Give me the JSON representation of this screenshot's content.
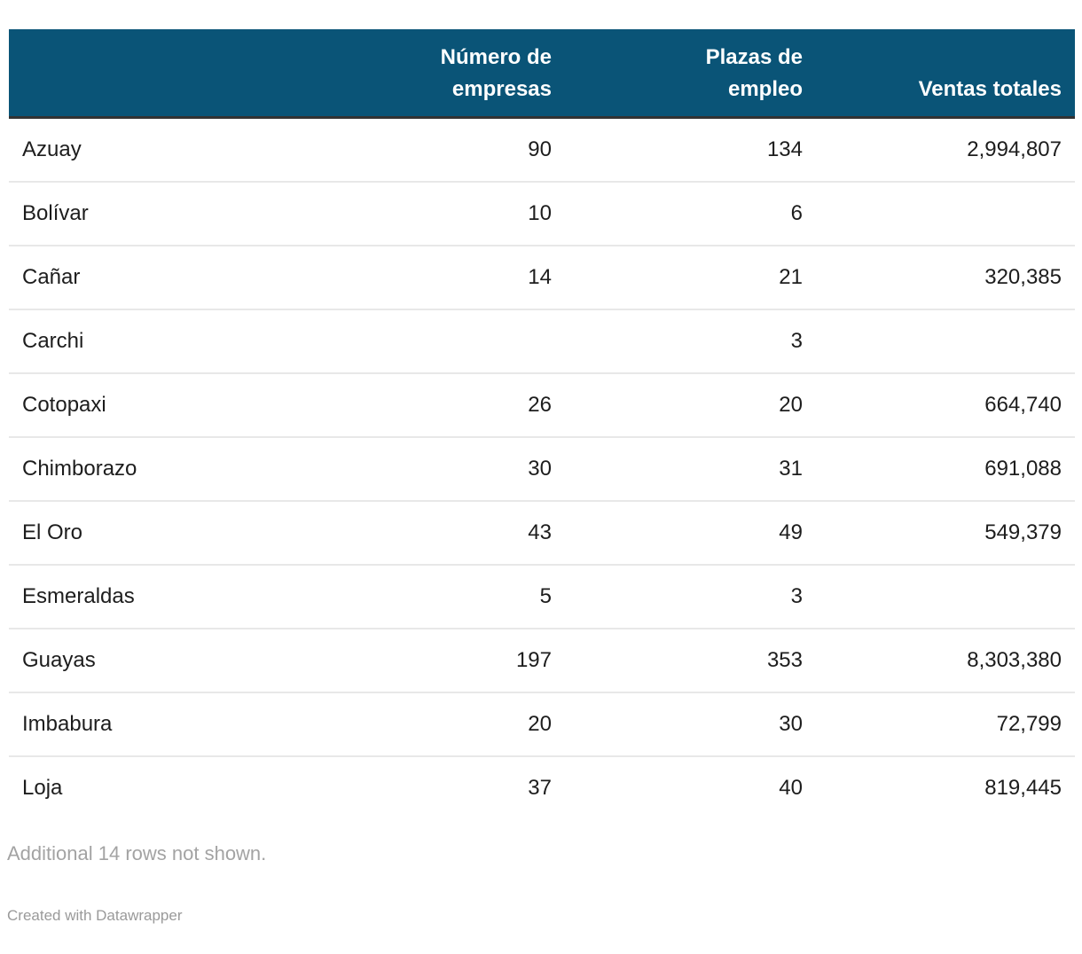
{
  "colors": {
    "page_bg": "#ffffff",
    "header_bg": "#0a5477",
    "header_text": "#ffffff",
    "header_border": "#333333",
    "row_text": "#1d1d1d",
    "row_separator": "#e8e8e8",
    "muted_text": "#a3a3a3",
    "attribution_text": "#9a9a9a"
  },
  "chart_data": {
    "type": "table",
    "columns": [
      {
        "label": "",
        "lines": [
          ""
        ],
        "align": "left"
      },
      {
        "label": "Número de empresas",
        "lines": [
          "Número de",
          "empresas"
        ],
        "align": "right"
      },
      {
        "label": "Plazas de empleo",
        "lines": [
          "Plazas de",
          "empleo"
        ],
        "align": "right"
      },
      {
        "label": "Ventas totales",
        "lines": [
          "Ventas totales"
        ],
        "align": "right"
      }
    ],
    "field_order": [
      "province",
      "num_empresas",
      "plazas_empleo",
      "ventas_totales"
    ],
    "rows": [
      {
        "province": "Azuay",
        "num_empresas": "90",
        "plazas_empleo": "134",
        "ventas_totales": "2,994,807"
      },
      {
        "province": "Bolívar",
        "num_empresas": "10",
        "plazas_empleo": "6",
        "ventas_totales": ""
      },
      {
        "province": "Cañar",
        "num_empresas": "14",
        "plazas_empleo": "21",
        "ventas_totales": "320,385"
      },
      {
        "province": "Carchi",
        "num_empresas": "",
        "plazas_empleo": "3",
        "ventas_totales": ""
      },
      {
        "province": "Cotopaxi",
        "num_empresas": "26",
        "plazas_empleo": "20",
        "ventas_totales": "664,740"
      },
      {
        "province": "Chimborazo",
        "num_empresas": "30",
        "plazas_empleo": "31",
        "ventas_totales": "691,088"
      },
      {
        "province": "El Oro",
        "num_empresas": "43",
        "plazas_empleo": "49",
        "ventas_totales": "549,379"
      },
      {
        "province": "Esmeraldas",
        "num_empresas": "5",
        "plazas_empleo": "3",
        "ventas_totales": ""
      },
      {
        "province": "Guayas",
        "num_empresas": "197",
        "plazas_empleo": "353",
        "ventas_totales": "8,303,380"
      },
      {
        "province": "Imbabura",
        "num_empresas": "20",
        "plazas_empleo": "30",
        "ventas_totales": "72,799"
      },
      {
        "province": "Loja",
        "num_empresas": "37",
        "plazas_empleo": "40",
        "ventas_totales": "819,445"
      }
    ]
  },
  "footer": {
    "note": "Additional 14 rows not shown.",
    "attribution": "Created with Datawrapper"
  }
}
